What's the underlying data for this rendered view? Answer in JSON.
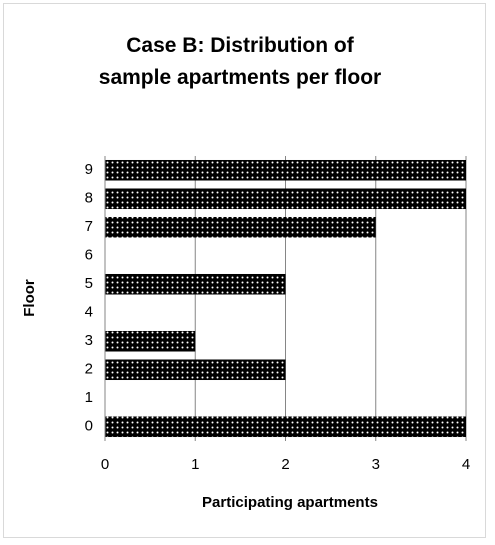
{
  "chart_data": {
    "type": "bar",
    "orientation": "horizontal",
    "title": "Case B: Distribution of sample apartments per floor",
    "x_label": "Participating apartments",
    "y_label": "Floor",
    "categories": [
      "0",
      "1",
      "2",
      "3",
      "4",
      "5",
      "6",
      "7",
      "8",
      "9"
    ],
    "values": [
      4,
      0,
      2,
      1,
      0,
      2,
      0,
      3,
      4,
      4
    ],
    "color": "#000000",
    "xlim": [
      0,
      4
    ],
    "xticks": [
      0,
      1,
      2,
      3,
      4
    ],
    "grid": true
  }
}
